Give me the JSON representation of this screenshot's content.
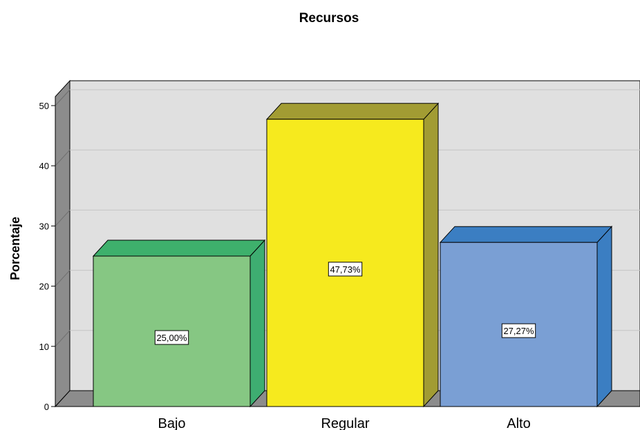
{
  "chart_data": {
    "type": "bar",
    "title": "Recursos",
    "ylabel": "Porcentaje",
    "xlabel": "",
    "ylim": [
      0,
      50
    ],
    "yticks": [
      0,
      10,
      20,
      30,
      40,
      50
    ],
    "grid": true,
    "style": "3d",
    "categories": [
      "Bajo",
      "Regular",
      "Alto"
    ],
    "values": [
      25.0,
      47.73,
      27.27
    ],
    "data_labels": [
      "25,00%",
      "47,73%",
      "27,27%"
    ],
    "colors": {
      "front": [
        "#86C783",
        "#F6EA1E",
        "#7A9FD4"
      ],
      "top": [
        "#3EB06C",
        "#A29C33",
        "#3B7EC2"
      ],
      "side": [
        "#3EAD71",
        "#A29C33",
        "#3B7EC2"
      ],
      "wall": "#E0E0E0",
      "wall_side": "#8C8C8C",
      "floor": "#8C8C8C",
      "gridline": "#C4C4C4"
    }
  }
}
